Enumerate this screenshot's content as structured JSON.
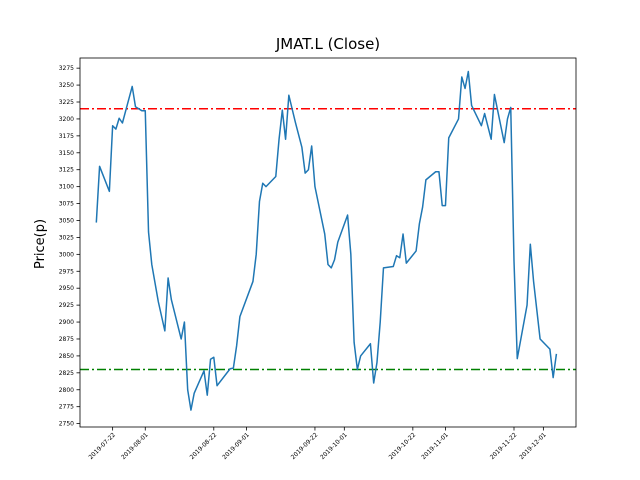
{
  "chart_data": {
    "type": "line",
    "title": "JMAT.L (Close)",
    "xlabel": "",
    "ylabel": "Price(p)",
    "xlim": [
      "2019-07-12",
      "2019-12-11"
    ],
    "ylim": [
      2745,
      3290
    ],
    "grid": false,
    "legend": "none",
    "x_ticks": [
      "2019-07-22",
      "2019-08-01",
      "2019-08-22",
      "2019-09-01",
      "2019-09-22",
      "2019-10-01",
      "2019-10-22",
      "2019-11-01",
      "2019-11-22",
      "2019-12-01"
    ],
    "y_ticks": [
      2750,
      2775,
      2800,
      2825,
      2850,
      2875,
      2900,
      2925,
      2950,
      2975,
      3000,
      3025,
      3050,
      3075,
      3100,
      3125,
      3150,
      3175,
      3200,
      3225,
      3250,
      3275
    ],
    "y_tick_labels": [
      "2750",
      "2775",
      "2800",
      "2825",
      "2850",
      "2875",
      "2900",
      "2925",
      "2950",
      "2975",
      "3000",
      "3025",
      "3050",
      "3075",
      "3100",
      "3125",
      "3150",
      "3175",
      "3200",
      "3225",
      "3250",
      "3275"
    ],
    "reference_lines": [
      {
        "value": 3215,
        "color": "#ff0000",
        "style": "dashdot"
      },
      {
        "value": 2830,
        "color": "#008000",
        "style": "dashdot"
      }
    ],
    "series": [
      {
        "color": "#1f77b4",
        "points": [
          [
            "2019-07-17",
            3047
          ],
          [
            "2019-07-18",
            3130
          ],
          [
            "2019-07-21",
            3093
          ],
          [
            "2019-07-22",
            3190
          ],
          [
            "2019-07-23",
            3185
          ],
          [
            "2019-07-24",
            3201
          ],
          [
            "2019-07-25",
            3194
          ],
          [
            "2019-07-28",
            3248
          ],
          [
            "2019-07-29",
            3218
          ],
          [
            "2019-07-31",
            3212
          ],
          [
            "2019-08-01",
            3212
          ],
          [
            "2019-08-02",
            3033
          ],
          [
            "2019-08-03",
            2985
          ],
          [
            "2019-08-05",
            2930
          ],
          [
            "2019-08-07",
            2887
          ],
          [
            "2019-08-08",
            2965
          ],
          [
            "2019-08-09",
            2933
          ],
          [
            "2019-08-12",
            2875
          ],
          [
            "2019-08-13",
            2900
          ],
          [
            "2019-08-14",
            2800
          ],
          [
            "2019-08-15",
            2770
          ],
          [
            "2019-08-16",
            2795
          ],
          [
            "2019-08-19",
            2828
          ],
          [
            "2019-08-20",
            2792
          ],
          [
            "2019-08-21",
            2845
          ],
          [
            "2019-08-22",
            2848
          ],
          [
            "2019-08-23",
            2806
          ],
          [
            "2019-08-27",
            2831
          ],
          [
            "2019-08-28",
            2832
          ],
          [
            "2019-08-29",
            2865
          ],
          [
            "2019-08-30",
            2908
          ],
          [
            "2019-09-03",
            2960
          ],
          [
            "2019-09-04",
            3000
          ],
          [
            "2019-09-05",
            3078
          ],
          [
            "2019-09-06",
            3105
          ],
          [
            "2019-09-07",
            3100
          ],
          [
            "2019-09-10",
            3115
          ],
          [
            "2019-09-11",
            3170
          ],
          [
            "2019-09-12",
            3213
          ],
          [
            "2019-09-13",
            3170
          ],
          [
            "2019-09-14",
            3235
          ],
          [
            "2019-09-16",
            3195
          ],
          [
            "2019-09-18",
            3158
          ],
          [
            "2019-09-19",
            3120
          ],
          [
            "2019-09-20",
            3125
          ],
          [
            "2019-09-21",
            3160
          ],
          [
            "2019-09-22",
            3100
          ],
          [
            "2019-09-25",
            3030
          ],
          [
            "2019-09-26",
            2985
          ],
          [
            "2019-09-27",
            2980
          ],
          [
            "2019-09-28",
            2992
          ],
          [
            "2019-09-29",
            3018
          ],
          [
            "2019-10-02",
            3058
          ],
          [
            "2019-10-03",
            3000
          ],
          [
            "2019-10-04",
            2870
          ],
          [
            "2019-10-05",
            2830
          ],
          [
            "2019-10-06",
            2850
          ],
          [
            "2019-10-09",
            2868
          ],
          [
            "2019-10-10",
            2810
          ],
          [
            "2019-10-11",
            2840
          ],
          [
            "2019-10-12",
            2900
          ],
          [
            "2019-10-13",
            2980
          ],
          [
            "2019-10-16",
            2982
          ],
          [
            "2019-10-17",
            2998
          ],
          [
            "2019-10-18",
            2995
          ],
          [
            "2019-10-19",
            3030
          ],
          [
            "2019-10-20",
            2987
          ],
          [
            "2019-10-23",
            3005
          ],
          [
            "2019-10-24",
            3045
          ],
          [
            "2019-10-25",
            3070
          ],
          [
            "2019-10-26",
            3110
          ],
          [
            "2019-10-29",
            3122
          ],
          [
            "2019-10-30",
            3122
          ],
          [
            "2019-10-31",
            3072
          ],
          [
            "2019-11-01",
            3072
          ],
          [
            "2019-11-02",
            3172
          ],
          [
            "2019-11-05",
            3200
          ],
          [
            "2019-11-06",
            3262
          ],
          [
            "2019-11-07",
            3245
          ],
          [
            "2019-11-08",
            3270
          ],
          [
            "2019-11-09",
            3220
          ],
          [
            "2019-11-12",
            3190
          ],
          [
            "2019-11-13",
            3208
          ],
          [
            "2019-11-15",
            3170
          ],
          [
            "2019-11-16",
            3236
          ],
          [
            "2019-11-19",
            3165
          ],
          [
            "2019-11-20",
            3200
          ],
          [
            "2019-11-21",
            3217
          ],
          [
            "2019-11-22",
            2990
          ],
          [
            "2019-11-23",
            2846
          ],
          [
            "2019-11-26",
            2925
          ],
          [
            "2019-11-27",
            3015
          ],
          [
            "2019-11-28",
            2960
          ],
          [
            "2019-11-30",
            2875
          ],
          [
            "2019-12-03",
            2860
          ],
          [
            "2019-12-04",
            2818
          ],
          [
            "2019-12-05",
            2853
          ]
        ]
      }
    ]
  }
}
